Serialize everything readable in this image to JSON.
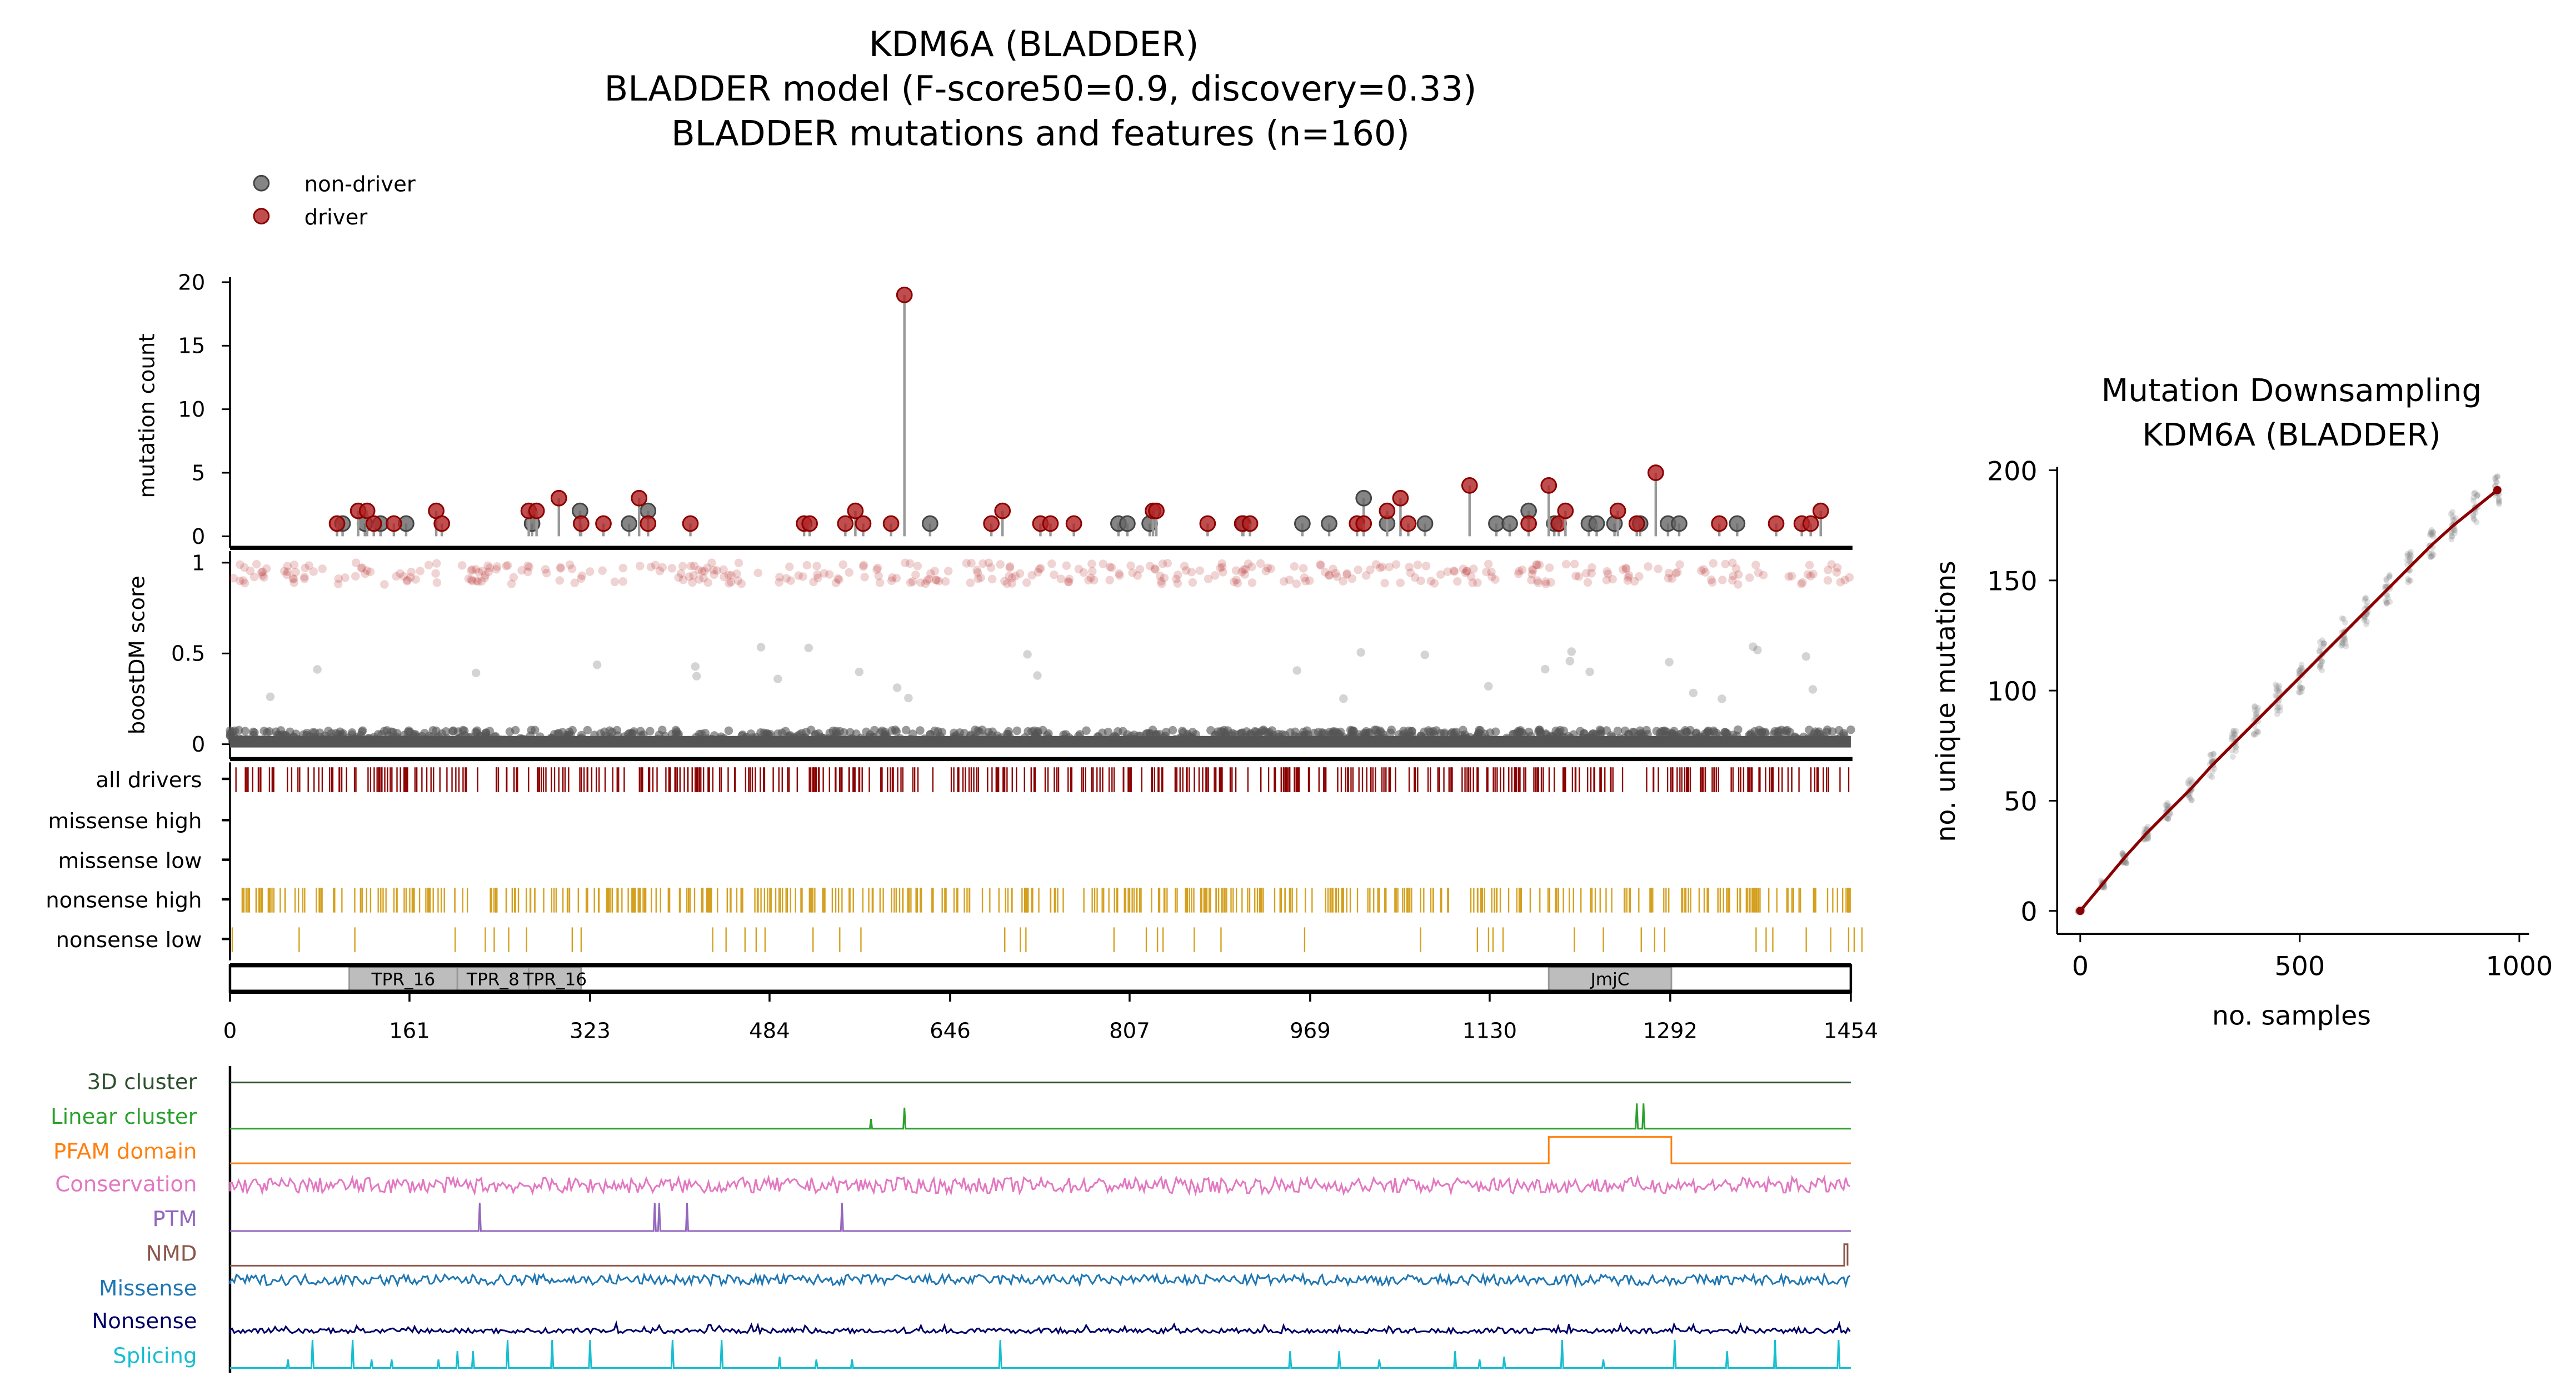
{
  "title": {
    "line1": "KDM6A (BLADDER)",
    "line2": "BLADDER model (F-score50=0.9, discovery=0.33)",
    "line3": "BLADDER mutations and features (n=160)"
  },
  "legend": {
    "nondriver": "non-driver",
    "driver": "driver"
  },
  "colors": {
    "driver": "#b22222",
    "nondriver": "#666666",
    "drivers_track": "#8b0000",
    "nonsense_track": "#d4a020"
  },
  "chart_data": [
    {
      "type": "scatter",
      "name": "lollipop",
      "ylabel": "mutation count",
      "yticks": [
        "0",
        "5",
        "10",
        "15",
        "20"
      ],
      "ylim": [
        0,
        20
      ],
      "xlim": [
        0,
        1454
      ],
      "drivers": [
        [
          96,
          1
        ],
        [
          115,
          2
        ],
        [
          123,
          2
        ],
        [
          129,
          1
        ],
        [
          147,
          1
        ],
        [
          185,
          2
        ],
        [
          190,
          1
        ],
        [
          268,
          2
        ],
        [
          275,
          2
        ],
        [
          295,
          3
        ],
        [
          315,
          1
        ],
        [
          335,
          1
        ],
        [
          367,
          3
        ],
        [
          375,
          1
        ],
        [
          413,
          1
        ],
        [
          515,
          1
        ],
        [
          520,
          1
        ],
        [
          552,
          1
        ],
        [
          561,
          2
        ],
        [
          568,
          1
        ],
        [
          593,
          1
        ],
        [
          605,
          19
        ],
        [
          683,
          1
        ],
        [
          693,
          2
        ],
        [
          727,
          1
        ],
        [
          736,
          1
        ],
        [
          757,
          1
        ],
        [
          828,
          2
        ],
        [
          831,
          2
        ],
        [
          877,
          1
        ],
        [
          908,
          1
        ],
        [
          915,
          1
        ],
        [
          1011,
          1
        ],
        [
          1017,
          1
        ],
        [
          1038,
          2
        ],
        [
          1050,
          3
        ],
        [
          1057,
          1
        ],
        [
          1112,
          4
        ],
        [
          1165,
          1
        ],
        [
          1183,
          4
        ],
        [
          1192,
          1
        ],
        [
          1198,
          2
        ],
        [
          1245,
          2
        ],
        [
          1262,
          1
        ],
        [
          1279,
          5
        ],
        [
          1336,
          1
        ],
        [
          1387,
          1
        ],
        [
          1410,
          1
        ],
        [
          1418,
          1
        ],
        [
          1427,
          2
        ]
      ],
      "nondrivers": [
        [
          101,
          1
        ],
        [
          121,
          1
        ],
        [
          135,
          1
        ],
        [
          158,
          1
        ],
        [
          271,
          1
        ],
        [
          314,
          2
        ],
        [
          358,
          1
        ],
        [
          375,
          2
        ],
        [
          628,
          1
        ],
        [
          797,
          1
        ],
        [
          805,
          1
        ],
        [
          825,
          1
        ],
        [
          909,
          1
        ],
        [
          962,
          1
        ],
        [
          986,
          1
        ],
        [
          1017,
          3
        ],
        [
          1038,
          1
        ],
        [
          1072,
          1
        ],
        [
          1136,
          1
        ],
        [
          1148,
          1
        ],
        [
          1165,
          2
        ],
        [
          1188,
          1
        ],
        [
          1219,
          1
        ],
        [
          1226,
          1
        ],
        [
          1242,
          1
        ],
        [
          1265,
          1
        ],
        [
          1290,
          1
        ],
        [
          1300,
          1
        ],
        [
          1352,
          1
        ]
      ]
    },
    {
      "type": "scatter",
      "name": "boostDM",
      "ylabel": "boostDM score",
      "yticks": [
        "0",
        "0.5",
        "1"
      ],
      "ylim": [
        0,
        1
      ]
    },
    {
      "type": "table",
      "name": "tracks",
      "rows": [
        "all drivers",
        "missense high",
        "missense low",
        "nonsense high",
        "nonsense low"
      ],
      "nonsense_low_positions": [
        2,
        62,
        112,
        202,
        229,
        237,
        250,
        266,
        307,
        315,
        433,
        445,
        462,
        472,
        480,
        523,
        547,
        566,
        695,
        709,
        714,
        793,
        822,
        832,
        837,
        865,
        889,
        964,
        1068,
        1119,
        1129,
        1133,
        1142,
        1206,
        1232,
        1266,
        1278,
        1287,
        1369,
        1378,
        1384,
        1414,
        1436,
        1452,
        1457,
        1464
      ]
    },
    {
      "type": "line",
      "name": "protein-axis",
      "xticks": [
        "0",
        "161",
        "323",
        "484",
        "646",
        "807",
        "969",
        "1130",
        "1292",
        "1454"
      ],
      "xlim": [
        0,
        1454
      ],
      "domains": [
        {
          "label": "TPR_16",
          "start": 107,
          "end": 204
        },
        {
          "label": "TPR_8",
          "start": 204,
          "end": 268
        },
        {
          "label": "TPR_16",
          "start": 268,
          "end": 315
        },
        {
          "label": "JmjC",
          "start": 1183,
          "end": 1293
        }
      ]
    },
    {
      "type": "line",
      "name": "features",
      "tracks": [
        {
          "label": "3D cluster",
          "color": "#2f4f2f",
          "kind": "flat"
        },
        {
          "label": "Linear cluster",
          "color": "#2ca02c",
          "kind": "spikes",
          "spikes": [
            [
              575,
              0.35
            ],
            [
              605,
              0.75
            ],
            [
              1262,
              0.9
            ],
            [
              1268,
              0.9
            ]
          ]
        },
        {
          "label": "PFAM domain",
          "color": "#ff7f0e",
          "kind": "box",
          "start": 1183,
          "end": 1293
        },
        {
          "label": "Conservation",
          "color": "#e377c2",
          "kind": "noise"
        },
        {
          "label": "PTM",
          "color": "#9467bd",
          "kind": "spikes",
          "spikes": [
            [
              224,
              1
            ],
            [
              381,
              1
            ],
            [
              385,
              1
            ],
            [
              410,
              1
            ],
            [
              549,
              1
            ]
          ]
        },
        {
          "label": "NMD",
          "color": "#8c564b",
          "kind": "nmd"
        },
        {
          "label": "Missense",
          "color": "#1f77b4",
          "kind": "noise2"
        },
        {
          "label": "Nonsense",
          "color": "#000066",
          "kind": "noise3"
        },
        {
          "label": "Splicing",
          "color": "#17becf",
          "kind": "spikes",
          "spikes": [
            [
              52,
              0.3
            ],
            [
              74,
              1
            ],
            [
              110,
              1
            ],
            [
              127,
              0.3
            ],
            [
              145,
              0.3
            ],
            [
              187,
              0.3
            ],
            [
              204,
              0.6
            ],
            [
              218,
              0.6
            ],
            [
              249,
              1
            ],
            [
              289,
              1
            ],
            [
              323,
              1
            ],
            [
              397,
              1
            ],
            [
              441,
              1
            ],
            [
              493,
              0.4
            ],
            [
              526,
              0.3
            ],
            [
              558,
              0.3
            ],
            [
              691,
              1
            ],
            [
              951,
              0.6
            ],
            [
              995,
              0.6
            ],
            [
              1031,
              0.3
            ],
            [
              1099,
              0.6
            ],
            [
              1121,
              0.3
            ],
            [
              1143,
              0.4
            ],
            [
              1195,
              1
            ],
            [
              1232,
              0.3
            ],
            [
              1296,
              1
            ],
            [
              1343,
              0.6
            ],
            [
              1386,
              1
            ],
            [
              1443,
              1
            ]
          ]
        }
      ]
    },
    {
      "type": "line",
      "name": "downsampling",
      "title": "Mutation Downsampling",
      "subtitle": "KDM6A (BLADDER)",
      "xlabel": "no. samples",
      "ylabel": "no. unique mutations",
      "xticks": [
        "0",
        "500",
        "1000"
      ],
      "yticks": [
        "0",
        "50",
        "100",
        "150",
        "200"
      ],
      "xlim": [
        -40,
        1030
      ],
      "ylim": [
        -8,
        202
      ],
      "x": [
        0,
        50,
        100,
        150,
        200,
        250,
        300,
        350,
        400,
        450,
        500,
        550,
        600,
        650,
        700,
        750,
        800,
        850,
        900,
        950
      ],
      "y": [
        0,
        12,
        24,
        35,
        45,
        55,
        66,
        76,
        86,
        96,
        106,
        116,
        126,
        136,
        146,
        156,
        166,
        175,
        183,
        191
      ]
    }
  ]
}
